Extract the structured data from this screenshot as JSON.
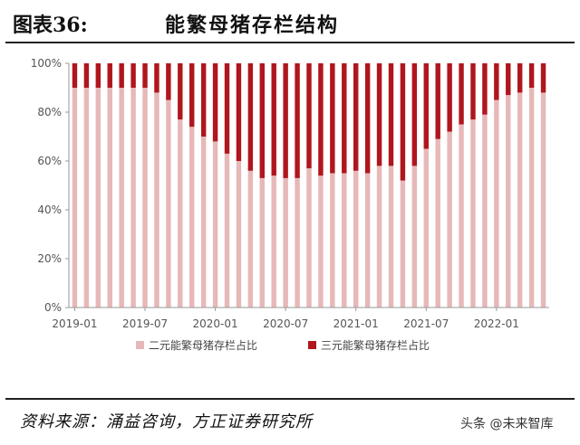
{
  "header": {
    "figure_label": "图表36:",
    "title": "能繁母猪存栏结构"
  },
  "source": "资料来源：涌益咨询，方正证券研究所",
  "watermark": "头条 @未来智库",
  "colors": {
    "two_way": "#e6b8b7",
    "three_way": "#b0161d",
    "axis": "#999999",
    "grid": "#dddddd"
  },
  "chart_data": {
    "type": "bar",
    "stacked": true,
    "categories": [
      "2019-01",
      "2019-02",
      "2019-03",
      "2019-04",
      "2019-05",
      "2019-06",
      "2019-07",
      "2019-08",
      "2019-09",
      "2019-10",
      "2019-11",
      "2019-12",
      "2020-01",
      "2020-02",
      "2020-03",
      "2020-04",
      "2020-05",
      "2020-06",
      "2020-07",
      "2020-08",
      "2020-09",
      "2020-10",
      "2020-11",
      "2020-12",
      "2021-01",
      "2021-02",
      "2021-03",
      "2021-04",
      "2021-05",
      "2021-06",
      "2021-07",
      "2021-08",
      "2021-09",
      "2021-10",
      "2021-11",
      "2021-12",
      "2022-01",
      "2022-02",
      "2022-03",
      "2022-04",
      "2022-05"
    ],
    "x_tick_labels": [
      "2019-01",
      "2019-07",
      "2020-01",
      "2020-07",
      "2021-01",
      "2021-07",
      "2022-01"
    ],
    "x_tick_indices": [
      0,
      6,
      12,
      18,
      24,
      30,
      36
    ],
    "y_ticks": [
      "0%",
      "20%",
      "40%",
      "60%",
      "80%",
      "100%"
    ],
    "ylim": [
      0,
      100
    ],
    "grid": false,
    "legend_position": "bottom",
    "series": [
      {
        "name": "二元能繁母猪存栏占比",
        "values": [
          90,
          90,
          90,
          90,
          90,
          90,
          90,
          88,
          85,
          77,
          74,
          70,
          68,
          63,
          60,
          56,
          53,
          54,
          53,
          53,
          57,
          54,
          55,
          55,
          56,
          55,
          58,
          58,
          52,
          58,
          65,
          69,
          72,
          75,
          77,
          79,
          85,
          87,
          88,
          90,
          88
        ]
      },
      {
        "name": "三元能繁母猪存栏占比",
        "values": [
          10,
          10,
          10,
          10,
          10,
          10,
          10,
          12,
          15,
          23,
          26,
          30,
          32,
          37,
          40,
          44,
          47,
          46,
          47,
          47,
          43,
          46,
          45,
          45,
          44,
          45,
          42,
          42,
          48,
          42,
          35,
          31,
          28,
          25,
          23,
          21,
          15,
          13,
          12,
          10,
          12
        ]
      }
    ]
  }
}
